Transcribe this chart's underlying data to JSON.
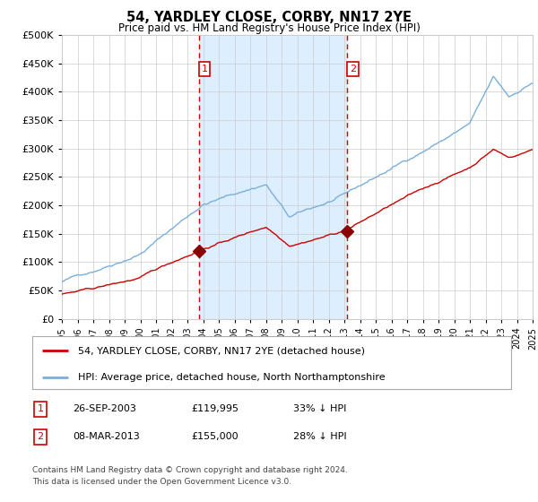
{
  "title": "54, YARDLEY CLOSE, CORBY, NN17 2YE",
  "subtitle": "Price paid vs. HM Land Registry's House Price Index (HPI)",
  "legend_line1": "54, YARDLEY CLOSE, CORBY, NN17 2YE (detached house)",
  "legend_line2": "HPI: Average price, detached house, North Northamptonshire",
  "annotation1_label": "1",
  "annotation1_date": "26-SEP-2003",
  "annotation1_price": "£119,995",
  "annotation1_pct": "33% ↓ HPI",
  "annotation2_label": "2",
  "annotation2_date": "08-MAR-2013",
  "annotation2_price": "£155,000",
  "annotation2_pct": "28% ↓ HPI",
  "footnote1": "Contains HM Land Registry data © Crown copyright and database right 2024.",
  "footnote2": "This data is licensed under the Open Government Licence v3.0.",
  "hpi_color": "#7aafdb",
  "price_color": "#cc0000",
  "marker_color": "#8b0000",
  "shade_color": "#ddeeff",
  "vline_color": "#cc0000",
  "grid_color": "#cccccc",
  "bg_color": "#ffffff",
  "annotation_box_color": "#cc0000",
  "ylim": [
    0,
    500000
  ],
  "yticks": [
    0,
    50000,
    100000,
    150000,
    200000,
    250000,
    300000,
    350000,
    400000,
    450000,
    500000
  ],
  "x_start_year": 1995,
  "x_end_year": 2025,
  "sale1_year": 2003.74,
  "sale1_price": 119995,
  "sale2_year": 2013.18,
  "sale2_price": 155000
}
